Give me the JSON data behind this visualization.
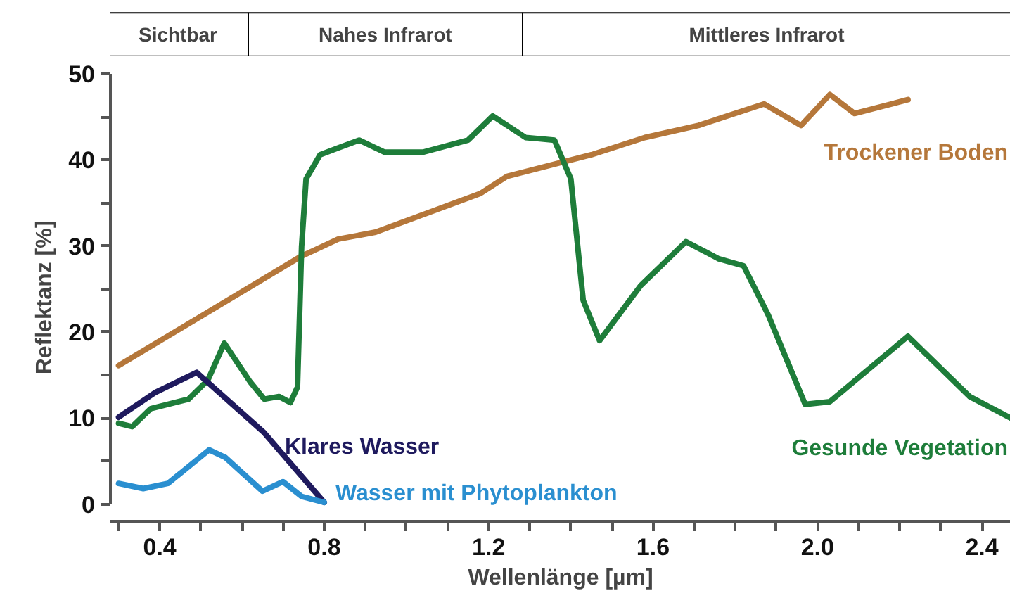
{
  "chart_data": {
    "type": "line",
    "xlabel": "Wellenlänge [µm]",
    "ylabel": "Reflektanz [%]",
    "xlim": [
      0.28,
      2.47
    ],
    "ylim": [
      -2,
      50
    ],
    "annotations": [
      "Sichtbar",
      "Nahes Infrarot",
      "Mittleres Infrarot"
    ],
    "xticks": [
      {
        "value": 0.3,
        "label": null
      },
      0.4,
      {
        "value": 0.5,
        "label": null
      },
      {
        "value": 0.6,
        "label": null
      },
      {
        "value": 0.7,
        "label": null
      },
      0.8,
      {
        "value": 0.9,
        "label": null
      },
      {
        "value": 1.0,
        "label": null
      },
      {
        "value": 1.1,
        "label": null
      },
      1.2,
      {
        "value": 1.3,
        "label": null
      },
      {
        "value": 1.4,
        "label": null
      },
      {
        "value": 1.5,
        "label": null
      },
      1.6,
      {
        "value": 1.7,
        "label": null
      },
      {
        "value": 1.8,
        "label": null
      },
      {
        "value": 1.9,
        "label": null
      },
      {
        "value": 2.0,
        "label": "2.0"
      },
      {
        "value": 2.1,
        "label": null
      },
      {
        "value": 2.2,
        "label": null
      },
      {
        "value": 2.3,
        "label": null
      },
      2.4
    ],
    "yticks": [
      0,
      {
        "value": 5,
        "label": null
      },
      10,
      {
        "value": 15,
        "label": null
      },
      20,
      {
        "value": 25,
        "label": null
      },
      30,
      {
        "value": 35,
        "label": null
      },
      40,
      {
        "value": 45,
        "label": null
      },
      50
    ],
    "grid": false,
    "marker": "none",
    "line_style": "solid",
    "series": [
      {
        "name": "Trockener Boden",
        "color": "#b5773a",
        "x": [
          0.3,
          0.744,
          0.834,
          0.925,
          1.18,
          1.245,
          1.45,
          1.58,
          1.71,
          1.87,
          1.96,
          2.03,
          2.09,
          2.22
        ],
        "values": [
          16.1,
          28.8,
          30.8,
          31.6,
          36.1,
          38.1,
          40.6,
          42.6,
          44.0,
          46.5,
          44.0,
          47.6,
          45.4,
          47.0
        ]
      },
      {
        "name": "Gesunde Vegetation",
        "color": "#1e7d3a",
        "x": [
          0.3,
          0.333,
          0.378,
          0.47,
          0.517,
          0.557,
          0.62,
          0.654,
          0.69,
          0.718,
          0.735,
          0.745,
          0.756,
          0.79,
          0.834,
          0.885,
          0.947,
          1.04,
          1.15,
          1.21,
          1.22,
          1.29,
          1.36,
          1.4,
          1.43,
          1.47,
          1.57,
          1.68,
          1.76,
          1.82,
          1.88,
          1.97,
          2.03,
          2.22,
          2.37,
          2.47
        ],
        "values": [
          9.4,
          9.0,
          11.1,
          12.2,
          14.4,
          18.7,
          14.2,
          12.2,
          12.5,
          11.8,
          13.6,
          29.9,
          37.8,
          40.6,
          41.4,
          42.3,
          40.9,
          40.9,
          42.3,
          45.1,
          44.8,
          42.6,
          42.3,
          37.8,
          23.7,
          19.0,
          25.4,
          30.5,
          28.5,
          27.7,
          22.0,
          11.6,
          11.9,
          19.5,
          12.5,
          10.0
        ]
      },
      {
        "name": "Klares Wasser",
        "color": "#1f1a5e",
        "x": [
          0.3,
          0.39,
          0.49,
          0.654,
          0.8
        ],
        "values": [
          10.1,
          13.0,
          15.3,
          8.3,
          0.2
        ]
      },
      {
        "name": "Wasser mit Phytoplankton",
        "color": "#2a8fd0",
        "x": [
          0.3,
          0.36,
          0.42,
          0.52,
          0.56,
          0.65,
          0.7,
          0.745,
          0.8
        ],
        "values": [
          2.4,
          1.8,
          2.4,
          6.3,
          5.4,
          1.5,
          2.6,
          0.9,
          0.2
        ]
      }
    ]
  }
}
